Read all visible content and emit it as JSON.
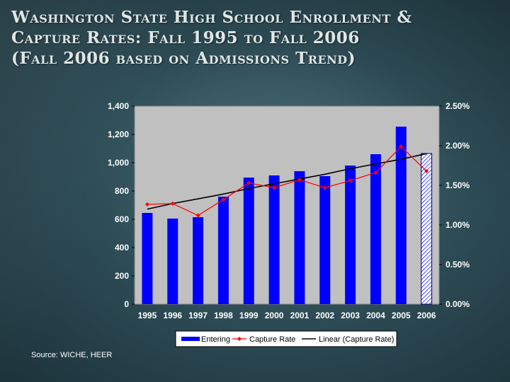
{
  "slide": {
    "title_lines": [
      "Washington State High School Enrollment &",
      "Capture Rates: Fall 1995 to Fall 2006",
      "(Fall 2006 based on Admissions Trend)"
    ],
    "source": "Source:  WICHE, HEER"
  },
  "chart_data": {
    "type": "bar",
    "title": "Washington State High School Enrollment & Capture Rates: Fall 1995 to Fall 2006 (Fall 2006 based on Admissions Trend)",
    "categories": [
      "1995",
      "1996",
      "1997",
      "1998",
      "1999",
      "2000",
      "2001",
      "2002",
      "2003",
      "2004",
      "2005",
      "2006"
    ],
    "series": [
      {
        "name": "Entering",
        "type": "bar",
        "axis": "left",
        "color": "#0000ff",
        "values": [
          645,
          605,
          615,
          760,
          895,
          910,
          940,
          905,
          980,
          1060,
          1255,
          1065
        ],
        "hatched_categories": [
          "2006"
        ]
      },
      {
        "name": "Capture Rate",
        "type": "line",
        "axis": "right",
        "color": "#ff0000",
        "values": [
          1.26,
          1.27,
          1.12,
          1.32,
          1.53,
          1.47,
          1.57,
          1.47,
          1.56,
          1.66,
          1.99,
          1.68
        ]
      },
      {
        "name": "Linear (Capture Rate)",
        "type": "trendline",
        "axis": "right",
        "color": "#000000",
        "values": [
          1.2,
          1.27,
          1.33,
          1.39,
          1.46,
          1.52,
          1.58,
          1.64,
          1.71,
          1.77,
          1.83,
          1.9
        ]
      }
    ],
    "y_left": {
      "ylim": [
        0,
        1400
      ],
      "ticks": [
        0,
        200,
        400,
        600,
        800,
        1000,
        1200,
        1400
      ],
      "tick_labels": [
        "0",
        "200",
        "400",
        "600",
        "800",
        "1,000",
        "1,200",
        "1,400"
      ]
    },
    "y_right": {
      "ylim": [
        0,
        2.5
      ],
      "ticks": [
        0,
        0.5,
        1,
        1.5,
        2,
        2.5
      ],
      "tick_labels": [
        "0.00%",
        "0.50%",
        "1.00%",
        "1.50%",
        "2.00%",
        "2.50%"
      ]
    },
    "grid": false,
    "legend": {
      "position": "bottom",
      "entries": [
        "Entering",
        "Capture Rate",
        "Linear (Capture Rate)"
      ]
    },
    "plot_background": "#c0c0c0"
  }
}
